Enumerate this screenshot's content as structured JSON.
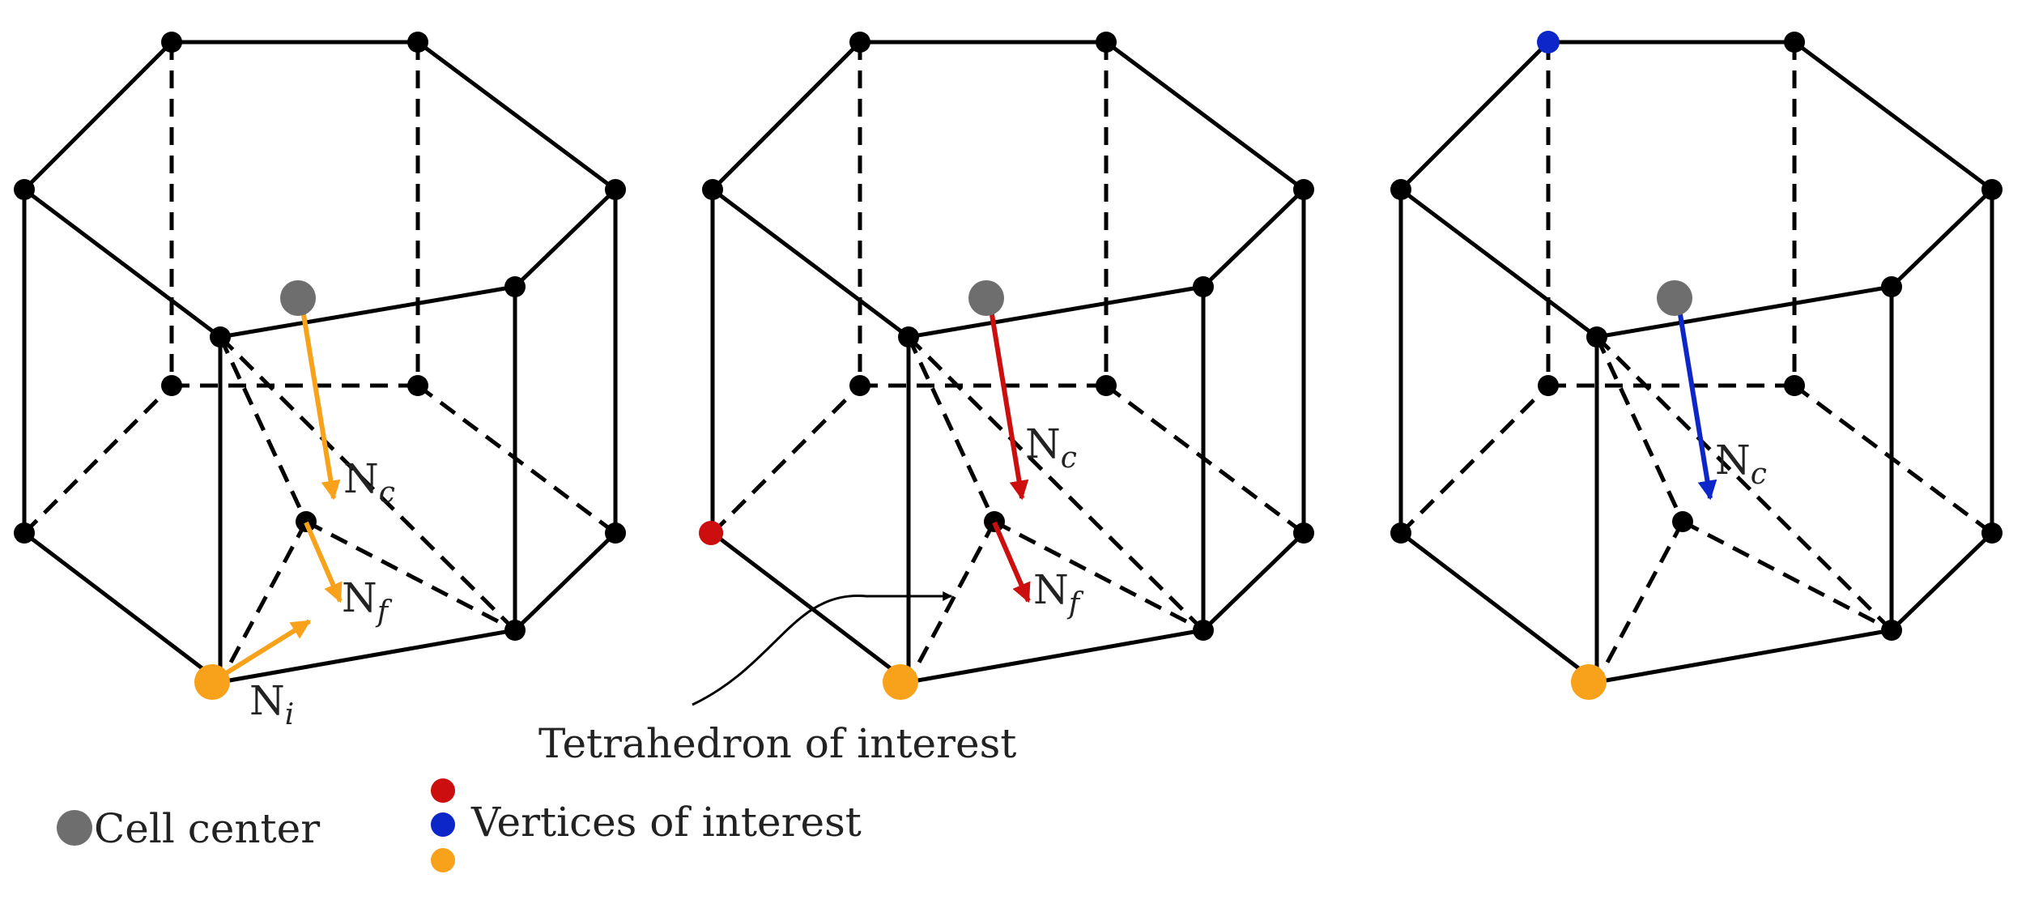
{
  "colors": {
    "edge": "#000000",
    "node": "#000000",
    "cell_center": "#6e6e6e",
    "orange": "#f7a21a",
    "red": "#cc0e0e",
    "blue": "#0c26c8"
  },
  "hexagons": [
    {
      "id": "hex-1",
      "highlight_vertex": "orange",
      "arrow_color": "orange",
      "arrows": [
        "Nc",
        "Nf",
        "Ni"
      ],
      "labels": {
        "nc": {
          "main": "N",
          "sub": "c"
        },
        "nf": {
          "main": "N",
          "sub": "f"
        },
        "ni": {
          "main": "N",
          "sub": "i"
        }
      }
    },
    {
      "id": "hex-2",
      "highlight_vertex": "red",
      "arrow_color": "red",
      "arrows": [
        "Nc",
        "Nf"
      ],
      "labels": {
        "nc": {
          "main": "N",
          "sub": "c"
        },
        "nf": {
          "main": "N",
          "sub": "f"
        }
      }
    },
    {
      "id": "hex-3",
      "highlight_vertex": "blue",
      "arrow_color": "blue",
      "arrows": [
        "Nc"
      ],
      "labels": {
        "nc": {
          "main": "N",
          "sub": "c"
        }
      }
    }
  ],
  "annotation": {
    "text": "Tetrahedron of interest"
  },
  "legend": {
    "cell_center": "Cell center",
    "vertices": "Vertices of interest",
    "vertex_colors": [
      "red",
      "blue",
      "orange"
    ]
  }
}
